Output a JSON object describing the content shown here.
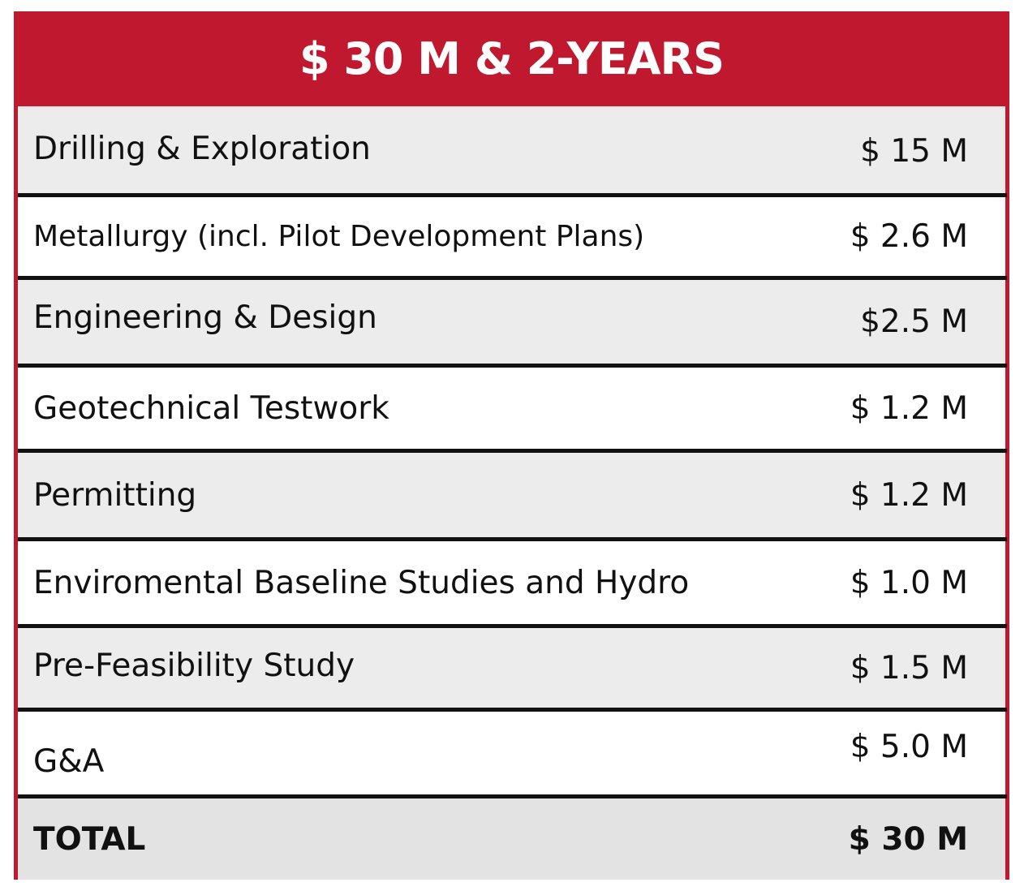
{
  "table": {
    "title": "$ 30 M & 2-YEARS",
    "rows": [
      {
        "label": "Drilling & Exploration",
        "value": "$ 15 M"
      },
      {
        "label": "Metallurgy (incl. Pilot Development Plans)",
        "value": "$ 2.6 M"
      },
      {
        "label": "Engineering & Design",
        "value": "$2.5 M"
      },
      {
        "label": "Geotechnical Testwork",
        "value": "$ 1.2 M"
      },
      {
        "label": "Permitting",
        "value": "$ 1.2 M"
      },
      {
        "label": "Enviromental Baseline Studies and Hydro",
        "value": "$ 1.0 M"
      },
      {
        "label": "Pre-Feasibility Study",
        "value": "$ 1.5 M"
      },
      {
        "label": "G&A",
        "value": "$ 5.0 M"
      }
    ],
    "total": {
      "label": "TOTAL",
      "value": "$ 30 M"
    }
  },
  "colors": {
    "header_bg": "#c0182f",
    "row_shaded": "#ececec",
    "row_plain": "#ffffff",
    "divider": "#111111"
  }
}
